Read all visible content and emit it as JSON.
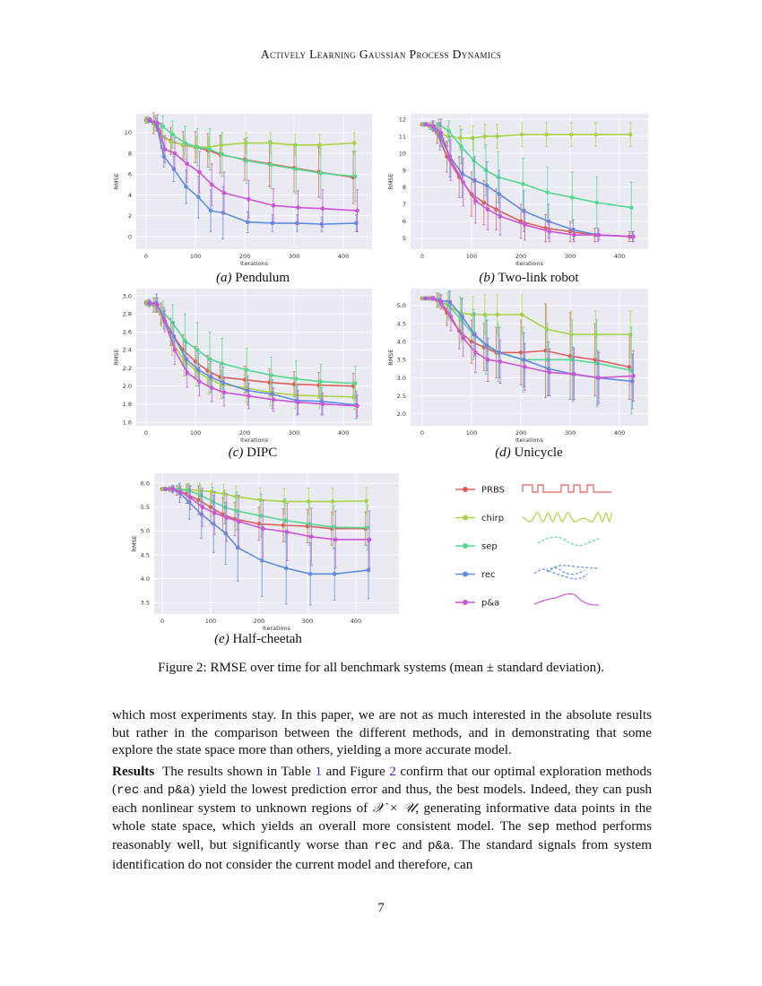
{
  "running_head": "Actively Learning Gaussian Process Dynamics",
  "colors": {
    "PRBS": "#e0605c",
    "chirp": "#aad348",
    "sep": "#55d98e",
    "rec": "#5f8ee0",
    "p&a": "#cc55d8",
    "plot_bg": "#eaeaf2",
    "grid": "#ffffff"
  },
  "legend": {
    "items": [
      {
        "name": "PRBS",
        "icon": "square-wave-icon"
      },
      {
        "name": "chirp",
        "icon": "chirp-wave-icon"
      },
      {
        "name": "sep",
        "icon": "dashed-trajectory-icon"
      },
      {
        "name": "rec",
        "icon": "receding-trajectory-icon"
      },
      {
        "name": "p&a",
        "icon": "smooth-trajectory-icon"
      }
    ]
  },
  "chart_data": [
    {
      "type": "line",
      "label": "(a)",
      "caption": "Pendulum",
      "xlabel": "Iterations",
      "ylabel": "RMSE",
      "xlim": [
        -20,
        458
      ],
      "ylim": [
        -1.2,
        11.8
      ],
      "xticks": [
        0,
        100,
        200,
        300,
        400
      ],
      "yticks": [
        0,
        2,
        4,
        6,
        8,
        10
      ],
      "grid": true,
      "x": [
        0,
        15,
        30,
        50,
        75,
        100,
        125,
        150,
        200,
        250,
        300,
        350,
        420
      ],
      "series": [
        {
          "name": "PRBS",
          "values": [
            11.2,
            10.9,
            9.7,
            9.2,
            8.8,
            8.6,
            8.3,
            7.9,
            7.4,
            7.0,
            6.6,
            6.2,
            5.7
          ],
          "std": [
            0.3,
            1.0,
            1.2,
            1.3,
            1.3,
            1.5,
            1.6,
            1.8,
            2.0,
            2.2,
            2.3,
            2.4,
            2.5
          ]
        },
        {
          "name": "chirp",
          "values": [
            11.2,
            10.9,
            9.6,
            9.1,
            8.8,
            8.6,
            8.6,
            8.8,
            9.0,
            9.0,
            8.8,
            8.8,
            9.0
          ],
          "std": [
            0.3,
            0.8,
            1.0,
            1.0,
            1.0,
            1.0,
            1.0,
            1.0,
            1.0,
            1.0,
            1.0,
            1.0,
            1.0
          ]
        },
        {
          "name": "sep",
          "values": [
            11.2,
            11.0,
            10.6,
            9.8,
            9.0,
            8.6,
            8.4,
            7.9,
            7.3,
            6.9,
            6.5,
            6.1,
            5.8
          ],
          "std": [
            0.3,
            0.6,
            1.0,
            1.3,
            1.6,
            1.8,
            2.0,
            2.1,
            2.2,
            2.3,
            2.4,
            2.4,
            2.4
          ]
        },
        {
          "name": "rec",
          "values": [
            11.2,
            10.8,
            7.7,
            6.5,
            4.8,
            3.8,
            2.5,
            2.3,
            1.4,
            1.3,
            1.3,
            1.2,
            1.3
          ],
          "std": [
            0.2,
            0.6,
            1.0,
            1.2,
            1.6,
            2.0,
            2.0,
            2.5,
            1.0,
            0.8,
            0.8,
            0.7,
            0.8
          ]
        },
        {
          "name": "p&a",
          "values": [
            11.2,
            10.9,
            8.4,
            8.0,
            7.0,
            6.2,
            5.0,
            4.2,
            3.6,
            3.0,
            2.8,
            2.7,
            2.5
          ],
          "std": [
            0.2,
            0.8,
            1.3,
            1.5,
            1.8,
            2.0,
            2.0,
            2.0,
            1.8,
            1.6,
            1.6,
            1.8,
            2.0
          ]
        }
      ]
    },
    {
      "type": "line",
      "label": "(b)",
      "caption": "Two-link robot",
      "xlabel": "Iterations",
      "ylabel": "RMSE",
      "xlim": [
        -23.6,
        458
      ],
      "ylim": [
        4.36,
        12.32
      ],
      "xticks": [
        0,
        100,
        200,
        300,
        400
      ],
      "yticks": [
        5,
        6,
        7,
        8,
        9,
        10,
        11,
        12
      ],
      "grid": true,
      "x": [
        0,
        15,
        30,
        50,
        75,
        100,
        125,
        150,
        200,
        250,
        300,
        350,
        420
      ],
      "series": [
        {
          "name": "PRBS",
          "values": [
            11.7,
            11.6,
            11.2,
            9.8,
            8.6,
            7.6,
            7.1,
            6.7,
            6.0,
            5.6,
            5.4,
            5.2,
            5.1
          ],
          "std": [
            0.1,
            0.2,
            0.6,
            0.9,
            1.2,
            1.3,
            1.3,
            1.2,
            1.0,
            0.8,
            0.6,
            0.4,
            0.3
          ]
        },
        {
          "name": "chirp",
          "values": [
            11.7,
            11.6,
            11.2,
            11.0,
            10.9,
            10.9,
            11.0,
            11.0,
            11.1,
            11.1,
            11.1,
            11.1,
            11.1
          ],
          "std": [
            0.1,
            0.2,
            0.5,
            0.6,
            0.7,
            0.7,
            0.7,
            0.7,
            0.7,
            0.7,
            0.7,
            0.7,
            0.7
          ]
        },
        {
          "name": "sep",
          "values": [
            11.7,
            11.6,
            11.7,
            11.3,
            10.4,
            9.6,
            9.0,
            8.6,
            8.2,
            7.7,
            7.4,
            7.1,
            6.8
          ],
          "std": [
            0.1,
            0.2,
            0.3,
            0.6,
            1.0,
            1.3,
            1.5,
            1.5,
            1.5,
            1.5,
            1.5,
            1.5,
            1.5
          ]
        },
        {
          "name": "rec",
          "values": [
            11.7,
            11.6,
            11.0,
            9.8,
            8.8,
            8.4,
            8.1,
            7.6,
            6.6,
            6.0,
            5.5,
            5.2,
            5.1
          ],
          "std": [
            0.1,
            0.3,
            0.8,
            1.2,
            1.4,
            1.4,
            1.4,
            1.4,
            1.2,
            1.0,
            0.6,
            0.4,
            0.3
          ]
        },
        {
          "name": "p&a",
          "values": [
            11.7,
            11.6,
            11.2,
            9.6,
            8.3,
            7.2,
            6.7,
            6.3,
            5.8,
            5.4,
            5.2,
            5.2,
            5.1
          ],
          "std": [
            0.1,
            0.3,
            0.8,
            1.2,
            1.4,
            1.3,
            1.2,
            1.1,
            0.9,
            0.6,
            0.4,
            0.3,
            0.3
          ]
        }
      ]
    },
    {
      "type": "line",
      "label": "(c)",
      "caption": "DIPC",
      "xlabel": "Iterations",
      "ylabel": "RMSE",
      "xlim": [
        -20,
        458
      ],
      "ylim": [
        1.56,
        3.08
      ],
      "xticks": [
        0,
        100,
        200,
        300,
        400
      ],
      "yticks": [
        1.6,
        1.8,
        2.0,
        2.2,
        2.4,
        2.6,
        2.8,
        3.0
      ],
      "grid": true,
      "x": [
        0,
        15,
        30,
        50,
        75,
        100,
        125,
        150,
        200,
        250,
        300,
        350,
        420
      ],
      "series": [
        {
          "name": "PRBS",
          "values": [
            2.92,
            2.9,
            2.8,
            2.6,
            2.4,
            2.27,
            2.17,
            2.1,
            2.07,
            2.04,
            2.02,
            2.01,
            2.0
          ],
          "std": [
            0.03,
            0.08,
            0.12,
            0.15,
            0.17,
            0.17,
            0.17,
            0.16,
            0.15,
            0.15,
            0.14,
            0.14,
            0.14
          ]
        },
        {
          "name": "chirp",
          "values": [
            2.92,
            2.9,
            2.78,
            2.5,
            2.28,
            2.17,
            2.08,
            2.02,
            1.98,
            1.93,
            1.9,
            1.89,
            1.88
          ],
          "std": [
            0.03,
            0.08,
            0.12,
            0.16,
            0.17,
            0.17,
            0.17,
            0.16,
            0.16,
            0.15,
            0.15,
            0.14,
            0.14
          ]
        },
        {
          "name": "sep",
          "values": [
            2.92,
            2.9,
            2.82,
            2.7,
            2.5,
            2.4,
            2.3,
            2.25,
            2.18,
            2.12,
            2.08,
            2.05,
            2.03
          ],
          "std": [
            0.03,
            0.08,
            0.12,
            0.2,
            0.3,
            0.3,
            0.3,
            0.28,
            0.24,
            0.2,
            0.2,
            0.19,
            0.19
          ]
        },
        {
          "name": "rec",
          "values": [
            2.92,
            2.92,
            2.75,
            2.55,
            2.3,
            2.18,
            2.1,
            2.04,
            1.95,
            1.91,
            1.84,
            1.83,
            1.79
          ],
          "std": [
            0.04,
            0.1,
            0.12,
            0.16,
            0.18,
            0.18,
            0.17,
            0.17,
            0.16,
            0.16,
            0.16,
            0.15,
            0.15
          ]
        },
        {
          "name": "p&a",
          "values": [
            2.92,
            2.9,
            2.72,
            2.4,
            2.15,
            2.05,
            1.98,
            1.93,
            1.89,
            1.85,
            1.82,
            1.8,
            1.78
          ],
          "std": [
            0.03,
            0.08,
            0.12,
            0.16,
            0.16,
            0.16,
            0.15,
            0.15,
            0.14,
            0.13,
            0.13,
            0.12,
            0.12
          ]
        }
      ]
    },
    {
      "type": "line",
      "label": "(d)",
      "caption": "Unicycle",
      "xlabel": "Iterations",
      "ylabel": "RMSE",
      "xlim": [
        -23.6,
        458
      ],
      "ylim": [
        1.67,
        5.47
      ],
      "xticks": [
        0,
        100,
        200,
        300,
        400
      ],
      "yticks": [
        2.0,
        2.5,
        3.0,
        3.5,
        4.0,
        4.5,
        5.0
      ],
      "grid": true,
      "x": [
        0,
        15,
        30,
        50,
        75,
        100,
        125,
        150,
        200,
        250,
        300,
        350,
        420
      ],
      "series": [
        {
          "name": "PRBS",
          "values": [
            5.2,
            5.2,
            5.15,
            4.8,
            4.3,
            4.0,
            3.85,
            3.7,
            3.7,
            3.75,
            3.6,
            3.5,
            3.3
          ],
          "std": [
            0.02,
            0.05,
            0.2,
            0.35,
            0.5,
            0.6,
            0.65,
            0.7,
            0.9,
            1.3,
            1.2,
            1.0,
            0.9
          ]
        },
        {
          "name": "chirp",
          "values": [
            5.2,
            5.2,
            5.15,
            5.0,
            4.8,
            4.75,
            4.75,
            4.75,
            4.75,
            4.35,
            4.2,
            4.2,
            4.2
          ],
          "std": [
            0.02,
            0.05,
            0.2,
            0.35,
            0.45,
            0.5,
            0.55,
            0.55,
            0.55,
            0.65,
            0.65,
            0.65,
            0.65
          ]
        },
        {
          "name": "sep",
          "values": [
            5.2,
            5.2,
            5.15,
            5.0,
            4.6,
            4.2,
            3.9,
            3.7,
            3.5,
            3.5,
            3.5,
            3.4,
            3.2
          ],
          "std": [
            0.02,
            0.05,
            0.2,
            0.4,
            0.6,
            0.7,
            0.8,
            0.8,
            0.9,
            1.0,
            1.1,
            1.2,
            1.2
          ]
        },
        {
          "name": "rec",
          "values": [
            5.2,
            5.2,
            5.15,
            5.1,
            4.7,
            4.2,
            3.9,
            3.7,
            3.5,
            3.25,
            3.1,
            3.0,
            2.9
          ],
          "std": [
            0.02,
            0.05,
            0.15,
            0.3,
            0.5,
            0.6,
            0.7,
            0.7,
            0.75,
            0.75,
            0.75,
            0.75,
            0.75
          ]
        },
        {
          "name": "p&a",
          "values": [
            5.2,
            5.2,
            5.1,
            4.7,
            4.1,
            3.7,
            3.5,
            3.45,
            3.3,
            3.15,
            3.1,
            3.0,
            3.05
          ],
          "std": [
            0.02,
            0.05,
            0.2,
            0.4,
            0.5,
            0.55,
            0.6,
            0.6,
            0.65,
            0.65,
            0.7,
            0.7,
            0.7
          ]
        }
      ]
    },
    {
      "type": "line",
      "label": "(e)",
      "caption": "Half-cheetah",
      "xlabel": "Iterations",
      "ylabel": "RMSE",
      "xlim": [
        -16.7,
        489
      ],
      "ylim": [
        3.26,
        6.21
      ],
      "xticks": [
        0,
        100,
        200,
        300,
        400
      ],
      "yticks": [
        3.5,
        4.0,
        4.5,
        5.0,
        5.5,
        6.0
      ],
      "grid": true,
      "x": [
        0,
        15,
        30,
        50,
        75,
        100,
        125,
        150,
        200,
        250,
        300,
        350,
        420
      ],
      "series": [
        {
          "name": "PRBS",
          "values": [
            5.88,
            5.88,
            5.85,
            5.78,
            5.65,
            5.5,
            5.35,
            5.25,
            5.15,
            5.12,
            5.1,
            5.05,
            5.05
          ],
          "std": [
            0.02,
            0.05,
            0.1,
            0.2,
            0.3,
            0.35,
            0.35,
            0.35,
            0.35,
            0.35,
            0.35,
            0.35,
            0.35
          ]
        },
        {
          "name": "chirp",
          "values": [
            5.88,
            5.88,
            5.88,
            5.87,
            5.85,
            5.82,
            5.78,
            5.72,
            5.65,
            5.62,
            5.62,
            5.62,
            5.63
          ],
          "std": [
            0.02,
            0.05,
            0.08,
            0.12,
            0.15,
            0.18,
            0.2,
            0.22,
            0.25,
            0.27,
            0.28,
            0.28,
            0.28
          ]
        },
        {
          "name": "sep",
          "values": [
            5.88,
            5.88,
            5.87,
            5.85,
            5.75,
            5.62,
            5.5,
            5.42,
            5.32,
            5.22,
            5.15,
            5.08,
            5.07
          ],
          "std": [
            0.02,
            0.05,
            0.1,
            0.15,
            0.2,
            0.3,
            0.35,
            0.4,
            0.45,
            0.45,
            0.45,
            0.45,
            0.47
          ]
        },
        {
          "name": "rec",
          "values": [
            5.88,
            5.88,
            5.8,
            5.6,
            5.35,
            5.15,
            4.95,
            4.65,
            4.38,
            4.22,
            4.1,
            4.1,
            4.18
          ],
          "std": [
            0.02,
            0.08,
            0.2,
            0.35,
            0.5,
            0.6,
            0.65,
            0.7,
            0.75,
            0.75,
            0.65,
            0.55,
            0.6
          ]
        },
        {
          "name": "p&a",
          "values": [
            5.88,
            5.88,
            5.82,
            5.7,
            5.5,
            5.38,
            5.28,
            5.2,
            5.05,
            4.98,
            4.88,
            4.82,
            4.82
          ],
          "std": [
            0.02,
            0.06,
            0.12,
            0.25,
            0.4,
            0.45,
            0.5,
            0.55,
            0.6,
            0.6,
            0.6,
            0.6,
            0.6
          ]
        }
      ]
    }
  ],
  "figure_caption": "Figure 2: RMSE over time for all benchmark systems (mean ± standard deviation).",
  "body": {
    "p1": "which most experiments stay. In this paper, we are not as much interested in the absolute results but rather in the comparison between the different methods, and in demonstrating that some explore the state space more than others, yielding a more accurate model.",
    "p2": {
      "heading": "Results",
      "s1": " The results shown in Table ",
      "ref_table": "1",
      "s2": " and Figure ",
      "ref_figure": "2",
      "s3": " confirm that our optimal exploration methods (",
      "code_rec": "rec",
      "s4": " and ",
      "code_pa": "p&a",
      "s5": ") yield the lowest prediction error and thus, the best models. Indeed, they can push each nonlinear system to unknown regions of ",
      "math": "𝒳 × 𝒰",
      "s6": ", generating informative data points in the whole state space, which yields an overall more consistent model. The ",
      "code_sep": "sep",
      "s7": " method performs reasonably well, but significantly worse than ",
      "code_rec2": "rec",
      "s8": " and ",
      "code_pa2": "p&a",
      "s9": ". The standard signals from system identification do not consider the current model and therefore, can"
    }
  },
  "page_number": "7"
}
